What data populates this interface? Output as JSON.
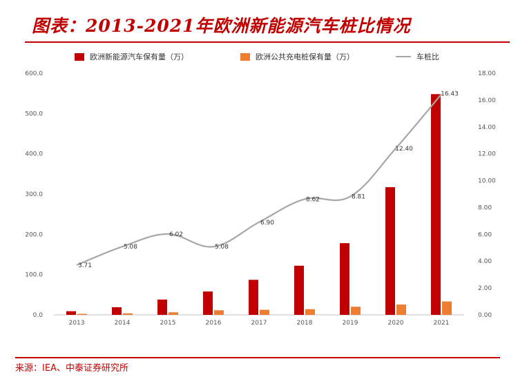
{
  "title": "图表：2013-2021年欧洲新能源汽车桩比情况",
  "source": "来源：IEA、中泰证券研究所",
  "colors": {
    "accent": "#c00000",
    "ev_bar": "#c00000",
    "charger_bar": "#ed7d31",
    "ratio_line": "#a6a6a6"
  },
  "chart_data": {
    "type": "bar",
    "categories": [
      "2013",
      "2014",
      "2015",
      "2016",
      "2017",
      "2018",
      "2019",
      "2020",
      "2021"
    ],
    "series": [
      {
        "name": "欧洲新能源汽车保有量（万）",
        "type": "bar",
        "axis": "left",
        "values": [
          9,
          19,
          38,
          58,
          87,
          122,
          178,
          317,
          548
        ]
      },
      {
        "name": "欧洲公共充电桩保有量（万）",
        "type": "bar",
        "axis": "left",
        "values": [
          2.5,
          3.8,
          6.3,
          11.4,
          12.6,
          14.1,
          20.2,
          25.6,
          33.3
        ]
      },
      {
        "name": "车桩比",
        "type": "line",
        "axis": "right",
        "values": [
          3.71,
          5.08,
          6.02,
          5.08,
          6.9,
          8.62,
          8.81,
          12.4,
          16.43
        ],
        "labels": [
          "3.71",
          "5.08",
          "6.02",
          "5.08",
          "6.90",
          "8.62",
          "8.81",
          "12.40",
          "16.43"
        ]
      }
    ],
    "left_axis": {
      "ylim": [
        0,
        600
      ],
      "ticks": [
        "0.0",
        "100.0",
        "200.0",
        "300.0",
        "400.0",
        "500.0",
        "600.0"
      ]
    },
    "right_axis": {
      "ylim": [
        0,
        18
      ],
      "ticks": [
        "0.00",
        "2.00",
        "4.00",
        "6.00",
        "8.00",
        "10.00",
        "12.00",
        "14.00",
        "16.00",
        "18.00"
      ]
    },
    "legend_position": "top",
    "grid": false
  }
}
